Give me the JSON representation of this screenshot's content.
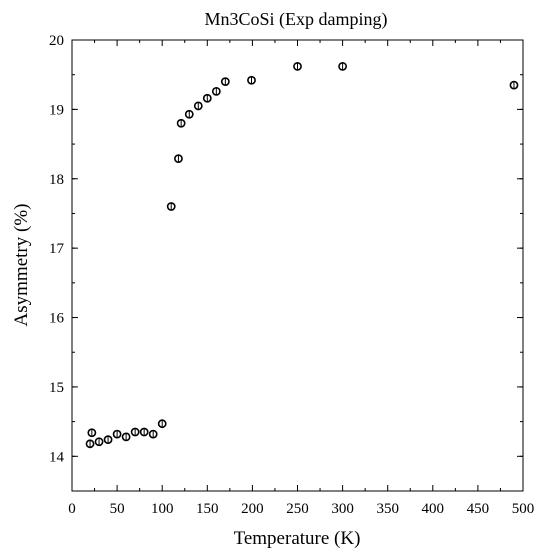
{
  "chart_data": {
    "type": "scatter",
    "title": "Mn3CoSi (Exp damping)",
    "xlabel": "Temperature (K)",
    "ylabel": "Asymmetry (%)",
    "xlim": [
      0,
      500
    ],
    "ylim": [
      13.5,
      20
    ],
    "xticks": [
      0,
      50,
      100,
      150,
      200,
      250,
      300,
      350,
      400,
      450,
      500
    ],
    "yticks": [
      14,
      15,
      16,
      17,
      18,
      19,
      20
    ],
    "xtick_labels": [
      "0",
      "50",
      "100",
      "150",
      "200",
      "250",
      "300",
      "350",
      "400",
      "450",
      "500"
    ],
    "ytick_labels": [
      "14",
      "15",
      "16",
      "17",
      "18",
      "19",
      "20"
    ],
    "grid": false,
    "legend": "none",
    "marker": "open-circle",
    "error_bar": 0.05,
    "series": [
      {
        "x": [
          20,
          22,
          30,
          40,
          50,
          60,
          70,
          80,
          90,
          100,
          110,
          118,
          121,
          130,
          140,
          150,
          160,
          170,
          199,
          250,
          300,
          490
        ],
        "y": [
          14.18,
          14.34,
          14.21,
          14.24,
          14.32,
          14.28,
          14.35,
          14.35,
          14.32,
          14.47,
          17.6,
          18.29,
          18.8,
          18.93,
          19.05,
          19.16,
          19.26,
          19.4,
          19.42,
          19.62,
          19.62,
          19.35
        ]
      }
    ]
  }
}
